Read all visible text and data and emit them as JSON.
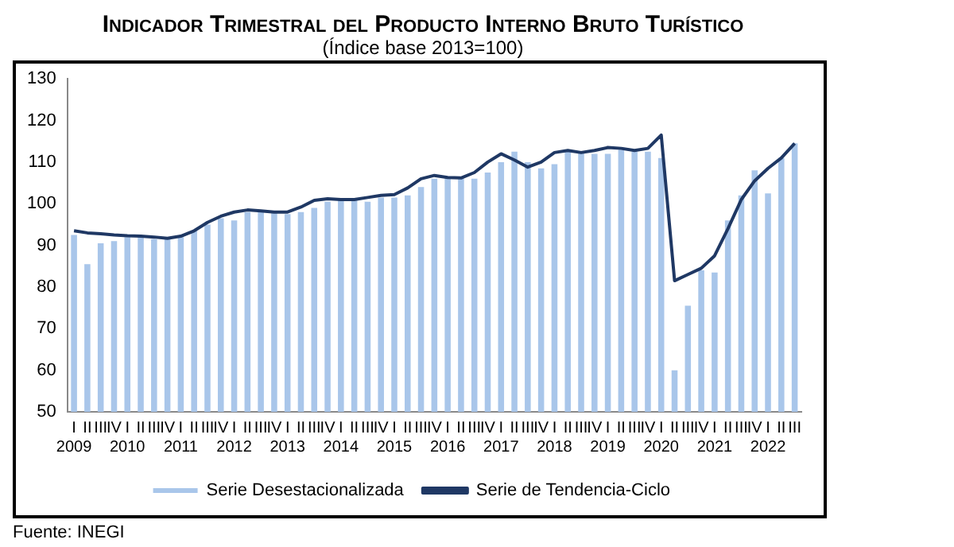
{
  "chart_data": {
    "type": "bar",
    "title": "Indicador Trimestral del Producto Interno Bruto Turístico",
    "subtitle": "(Índice base 2013=100)",
    "categories": [
      "I\n2009",
      "II",
      "III",
      "IV",
      "I\n2010",
      "II",
      "III",
      "IV",
      "I\n2011",
      "II",
      "III",
      "IV",
      "I\n2012",
      "II",
      "III",
      "IV",
      "I\n2013",
      "II",
      "III",
      "IV",
      "I\n2014",
      "II",
      "III",
      "IV",
      "I\n2015",
      "II",
      "III",
      "IV",
      "I\n2016",
      "II",
      "III",
      "IV",
      "I\n2017",
      "II",
      "III",
      "IV",
      "I\n2018",
      "II",
      "III",
      "IV",
      "I\n2019",
      "II",
      "III",
      "IV",
      "I\n2020",
      "II",
      "III",
      "IV",
      "I\n2021",
      "II",
      "III",
      "IV",
      "I\n2022",
      "II",
      "III"
    ],
    "series": [
      {
        "name": "Serie Desestacionalizada",
        "color": "#a9c6ea",
        "values": [
          92.5,
          85.5,
          90.5,
          91,
          92,
          92,
          91.5,
          91.5,
          92,
          93.5,
          95,
          96.5,
          96,
          98,
          98.5,
          98,
          97.5,
          98,
          99,
          100.5,
          101,
          101,
          100.5,
          101.5,
          101.5,
          102,
          104,
          106,
          106.5,
          106,
          106,
          107.5,
          110,
          112.5,
          110,
          108.5,
          109.5,
          112.5,
          112.5,
          112,
          112,
          113,
          112.5,
          112.5,
          111,
          60,
          75.5,
          84,
          83.5,
          96,
          102,
          108,
          102.5,
          111,
          114.5
        ]
      },
      {
        "name": "Serie de Tendencia-Ciclo",
        "type": "line",
        "color": "#1f3864",
        "values": [
          93.5,
          93,
          92.8,
          92.5,
          92.3,
          92.2,
          92,
          91.7,
          92.2,
          93.5,
          95.5,
          97,
          98,
          98.5,
          98.3,
          98,
          98,
          99.2,
          100.8,
          101.2,
          101,
          101,
          101.5,
          102,
          102.2,
          103.8,
          106,
          106.8,
          106.3,
          106.2,
          107.5,
          110,
          112,
          110.5,
          108.8,
          110,
          112.3,
          112.8,
          112.3,
          112.8,
          113.5,
          113.3,
          112.8,
          113.3,
          116.5,
          81.5,
          83,
          84.5,
          87.5,
          94,
          101,
          105.5,
          108.5,
          111,
          114.5
        ]
      }
    ],
    "ylim": [
      50,
      130
    ],
    "yticks": [
      50,
      60,
      70,
      80,
      90,
      100,
      110,
      120,
      130
    ],
    "grid": false,
    "legend": "bottom",
    "marker": "none",
    "annotations": [
      "Fuente: INEGI"
    ]
  }
}
